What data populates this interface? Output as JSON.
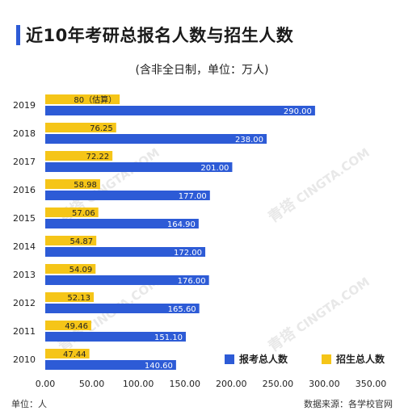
{
  "header": {
    "title": "近10年考研总报名人数与招生人数",
    "subtitle": "(含非全日制，单位：万人)"
  },
  "footer": {
    "unit": "单位：人",
    "source": "数据来源：各学校官网"
  },
  "watermark": {
    "name": "青塔",
    "domain": "CINGTA.COM"
  },
  "colors": {
    "applicants": "#2d5bd6",
    "admitted": "#f5c518",
    "accent": "#2d5bd6"
  },
  "chart_data": {
    "type": "bar",
    "orientation": "horizontal",
    "categories": [
      "2019",
      "2018",
      "2017",
      "2016",
      "2015",
      "2014",
      "2013",
      "2012",
      "2011",
      "2010"
    ],
    "series": [
      {
        "name": "招生总人数",
        "values": [
          80,
          76.25,
          72.22,
          58.98,
          57.06,
          54.87,
          54.09,
          52.13,
          49.46,
          47.44
        ],
        "labels": [
          "80（估算）",
          "76.25",
          "72.22",
          "58.98",
          "57.06",
          "54.87",
          "54.09",
          "52.13",
          "49.46",
          "47.44"
        ]
      },
      {
        "name": "报考总人数",
        "values": [
          290,
          238,
          201,
          177,
          164.9,
          172,
          176,
          165.6,
          151.1,
          140.6
        ],
        "labels": [
          "290.00",
          "238.00",
          "201.00",
          "177.00",
          "164.90",
          "172.00",
          "176.00",
          "165.60",
          "151.10",
          "140.60"
        ]
      }
    ],
    "xlim": [
      0,
      350
    ],
    "xticks": [
      "0.00",
      "50.00",
      "100.00",
      "150.00",
      "200.00",
      "250.00",
      "300.00",
      "350.00"
    ],
    "legend": [
      "报考总人数",
      "招生总人数"
    ],
    "legend_position": "bottom-right",
    "grid": false
  }
}
